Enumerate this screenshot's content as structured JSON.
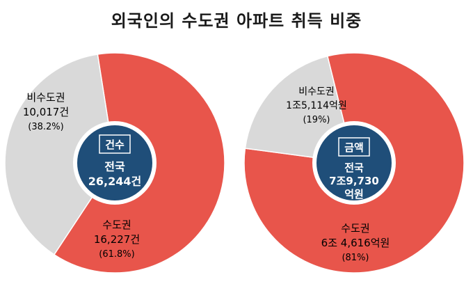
{
  "title": "외국인의 수도권 아파트 취득 비중",
  "colors": {
    "capital": "#e8554b",
    "noncapital": "#d9d9d9",
    "center": "#1f4e79",
    "ring": "#ffffff"
  },
  "chart_data": [
    {
      "type": "pie",
      "badge": "건수",
      "center_lines": [
        "전국",
        "26,244건"
      ],
      "slices": [
        {
          "name": "수도권",
          "value": 61.8,
          "amount": "16,227건",
          "pct": "(61.8%)"
        },
        {
          "name": "비수도권",
          "value": 38.2,
          "amount": "10,017건",
          "pct": "(38.2%)"
        }
      ]
    },
    {
      "type": "pie",
      "badge": "금액",
      "center_lines": [
        "전국",
        "7조9,730",
        "억원"
      ],
      "slices": [
        {
          "name": "수도권",
          "value": 81,
          "amount": "6조 4,616억원",
          "pct": "(81%)"
        },
        {
          "name": "비수도권",
          "value": 19,
          "amount": "1조5,114억원",
          "pct": "(19%)"
        }
      ]
    }
  ]
}
